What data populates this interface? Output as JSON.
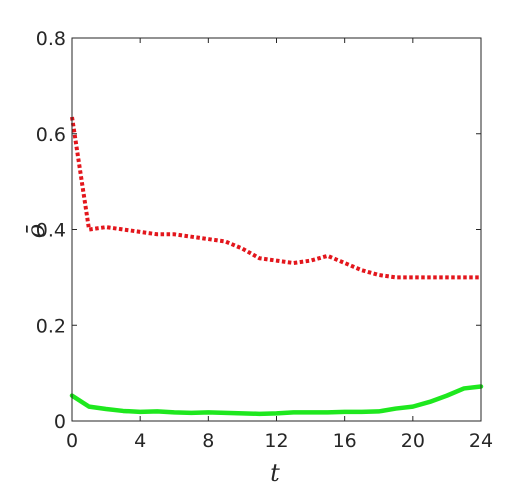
{
  "chart_data": {
    "type": "line",
    "xlabel": "t",
    "ylabel": "ō",
    "xlim": [
      0,
      24
    ],
    "ylim": [
      0,
      0.8
    ],
    "xticks": [
      0,
      4,
      8,
      12,
      16,
      20,
      24
    ],
    "xtick_labels": [
      "0",
      "4",
      "8",
      "12",
      "16",
      "20",
      "24"
    ],
    "yticks": [
      0,
      0.2,
      0.4,
      0.6,
      0.8
    ],
    "ytick_labels": [
      "0",
      "0.2",
      "0.4",
      "0.6",
      "0.8"
    ],
    "grid": false,
    "x": [
      0,
      1,
      2,
      3,
      4,
      5,
      6,
      7,
      8,
      9,
      10,
      11,
      12,
      13,
      14,
      15,
      16,
      17,
      18,
      19,
      20,
      21,
      22,
      23,
      24
    ],
    "series": [
      {
        "color": "#e3161c",
        "line_style": "dotted",
        "values": [
          0.635,
          0.4,
          0.405,
          0.4,
          0.395,
          0.39,
          0.39,
          0.385,
          0.38,
          0.375,
          0.36,
          0.34,
          0.335,
          0.33,
          0.335,
          0.345,
          0.33,
          0.315,
          0.305,
          0.3,
          0.3,
          0.3,
          0.3,
          0.3,
          0.3
        ]
      },
      {
        "color": "#1ee81e",
        "line_style": "solid",
        "values": [
          0.053,
          0.03,
          0.025,
          0.021,
          0.019,
          0.02,
          0.018,
          0.017,
          0.018,
          0.017,
          0.016,
          0.015,
          0.016,
          0.018,
          0.018,
          0.018,
          0.019,
          0.019,
          0.02,
          0.026,
          0.03,
          0.04,
          0.053,
          0.068,
          0.072
        ]
      }
    ]
  }
}
